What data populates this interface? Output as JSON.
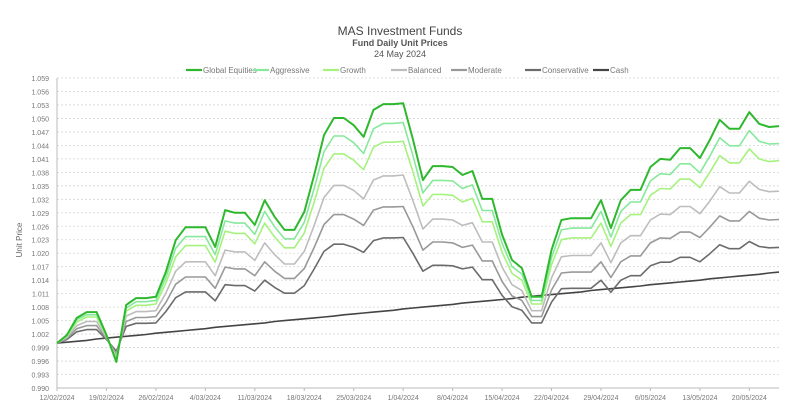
{
  "chart_data": {
    "type": "line",
    "title": "MAS Investment Funds",
    "subtitle": "Fund Daily Unit Prices",
    "date": "24 May 2024",
    "xlabel": "",
    "ylabel": "Unit Price",
    "ylim": [
      0.99,
      1.059
    ],
    "yticks": [
      "0.990",
      "0.993",
      "0.996",
      "0.999",
      "1.002",
      "1.005",
      "1.008",
      "1.011",
      "1.014",
      "1.017",
      "1.020",
      "1.023",
      "1.026",
      "1.029",
      "1.032",
      "1.035",
      "1.038",
      "1.041",
      "1.044",
      "1.047",
      "1.050",
      "1.053",
      "1.056",
      "1.059"
    ],
    "xtick_labels": [
      "12/02/2024",
      "19/02/2024",
      "26/02/2024",
      "4/03/2024",
      "11/03/2024",
      "18/03/2024",
      "25/03/2024",
      "1/04/2024",
      "8/04/2024",
      "15/04/2024",
      "22/04/2024",
      "29/04/2024",
      "6/05/2024",
      "13/05/2024",
      "20/05/2024"
    ],
    "grid": true,
    "legend": "top",
    "x": [
      "12/02/2024",
      "13/02/2024",
      "14/02/2024",
      "15/02/2024",
      "16/02/2024",
      "19/02/2024",
      "20/02/2024",
      "21/02/2024",
      "22/02/2024",
      "23/02/2024",
      "26/02/2024",
      "27/02/2024",
      "28/02/2024",
      "29/02/2024",
      "1/03/2024",
      "4/03/2024",
      "5/03/2024",
      "6/03/2024",
      "7/03/2024",
      "8/03/2024",
      "11/03/2024",
      "12/03/2024",
      "13/03/2024",
      "14/03/2024",
      "15/03/2024",
      "18/03/2024",
      "19/03/2024",
      "20/03/2024",
      "21/03/2024",
      "22/03/2024",
      "25/03/2024",
      "26/03/2024",
      "27/03/2024",
      "28/03/2024",
      "29/03/2024",
      "1/04/2024",
      "2/04/2024",
      "3/04/2024",
      "4/04/2024",
      "5/04/2024",
      "8/04/2024",
      "9/04/2024",
      "10/04/2024",
      "11/04/2024",
      "12/04/2024",
      "15/04/2024",
      "16/04/2024",
      "17/04/2024",
      "18/04/2024",
      "19/04/2024",
      "22/04/2024",
      "23/04/2024",
      "24/04/2024",
      "25/04/2024",
      "26/04/2024",
      "29/04/2024",
      "30/04/2024",
      "1/05/2024",
      "2/05/2024",
      "3/05/2024",
      "6/05/2024",
      "7/05/2024",
      "8/05/2024",
      "9/05/2024",
      "10/05/2024",
      "13/05/2024",
      "14/05/2024",
      "15/05/2024",
      "16/05/2024",
      "17/05/2024",
      "20/05/2024",
      "21/05/2024",
      "22/05/2024",
      "23/05/2024"
    ],
    "series": [
      {
        "name": "Global Equities",
        "color": "#2eb82e",
        "width": 2,
        "values": [
          1.0,
          1.0018,
          1.0056,
          1.0069,
          1.0069,
          1.0018,
          0.9958,
          1.0085,
          1.01,
          1.01,
          1.0103,
          1.0158,
          1.0229,
          1.0258,
          1.0258,
          1.0258,
          1.0214,
          1.0296,
          1.029,
          1.029,
          1.0263,
          1.0318,
          1.0281,
          1.0252,
          1.0252,
          1.0292,
          1.0374,
          1.0463,
          1.0501,
          1.0501,
          1.0485,
          1.0459,
          1.0519,
          1.0532,
          1.0532,
          1.0534,
          1.0452,
          1.0363,
          1.0394,
          1.0394,
          1.0392,
          1.0374,
          1.0383,
          1.0321,
          1.0321,
          1.0241,
          1.0185,
          1.0167,
          1.0103,
          1.0103,
          1.0207,
          1.0274,
          1.0278,
          1.0278,
          1.0278,
          1.0318,
          1.0256,
          1.0318,
          1.0341,
          1.0341,
          1.0392,
          1.041,
          1.0408,
          1.0434,
          1.0434,
          1.0412,
          1.0452,
          1.0497,
          1.0477,
          1.0477,
          1.0514,
          1.0488,
          1.0481,
          1.0483
        ]
      },
      {
        "name": "Aggressive",
        "color": "#86e99c",
        "width": 1.6,
        "values": [
          1.0,
          1.0017,
          1.0052,
          1.0063,
          1.0063,
          1.0017,
          0.9961,
          1.0078,
          1.0092,
          1.0092,
          1.0095,
          1.0145,
          1.0211,
          1.0237,
          1.0237,
          1.0237,
          1.0197,
          1.0272,
          1.0267,
          1.0267,
          1.0242,
          1.0293,
          1.0259,
          1.0232,
          1.0232,
          1.0269,
          1.0344,
          1.0426,
          1.0461,
          1.0461,
          1.0446,
          1.0422,
          1.0477,
          1.0489,
          1.0489,
          1.0491,
          1.0416,
          1.0334,
          1.0362,
          1.0362,
          1.0361,
          1.0344,
          1.0352,
          1.0295,
          1.0295,
          1.0222,
          1.017,
          1.0154,
          1.0095,
          1.0095,
          1.019,
          1.0252,
          1.0256,
          1.0256,
          1.0256,
          1.0293,
          1.0236,
          1.0293,
          1.0314,
          1.0314,
          1.0361,
          1.0377,
          1.0375,
          1.0399,
          1.0399,
          1.0379,
          1.0416,
          1.0457,
          1.0439,
          1.0439,
          1.0473,
          1.0449,
          1.0443,
          1.0444
        ]
      },
      {
        "name": "Growth",
        "color": "#a6f27f",
        "width": 1.6,
        "values": [
          1.0,
          1.0015,
          1.0047,
          1.0058,
          1.0058,
          1.0015,
          0.9965,
          1.0071,
          1.0084,
          1.0084,
          1.0087,
          1.0133,
          1.0192,
          1.0217,
          1.0217,
          1.0217,
          1.018,
          1.0249,
          1.0244,
          1.0244,
          1.0221,
          1.0267,
          1.0236,
          1.0212,
          1.0212,
          1.0245,
          1.0314,
          1.0389,
          1.0421,
          1.0421,
          1.0407,
          1.0386,
          1.0436,
          1.0447,
          1.0447,
          1.0449,
          1.038,
          1.0305,
          1.0331,
          1.0331,
          1.0329,
          1.0314,
          1.0322,
          1.027,
          1.027,
          1.0202,
          1.0155,
          1.014,
          1.0087,
          1.0087,
          1.0174,
          1.023,
          1.0234,
          1.0234,
          1.0234,
          1.0267,
          1.0215,
          1.0267,
          1.0286,
          1.0286,
          1.0329,
          1.0344,
          1.0343,
          1.0365,
          1.0365,
          1.0346,
          1.038,
          1.0417,
          1.0401,
          1.0401,
          1.0432,
          1.041,
          1.0404,
          1.0406
        ]
      },
      {
        "name": "Balanced",
        "color": "#bdbdbd",
        "width": 1.6,
        "values": [
          1.0,
          1.0013,
          1.0039,
          1.0048,
          1.0048,
          1.0013,
          0.9971,
          1.006,
          1.007,
          1.007,
          1.0072,
          1.0111,
          1.016,
          1.0181,
          1.0181,
          1.0181,
          1.015,
          1.0207,
          1.0203,
          1.0203,
          1.0184,
          1.0223,
          1.0197,
          1.0176,
          1.0176,
          1.0204,
          1.0262,
          1.0324,
          1.0351,
          1.0351,
          1.034,
          1.0321,
          1.0363,
          1.0372,
          1.0372,
          1.0374,
          1.0316,
          1.0254,
          1.0276,
          1.0276,
          1.0274,
          1.0262,
          1.0268,
          1.0225,
          1.0225,
          1.0169,
          1.013,
          1.0117,
          1.0072,
          1.0072,
          1.0145,
          1.0192,
          1.0195,
          1.0195,
          1.0195,
          1.0223,
          1.0179,
          1.0223,
          1.0239,
          1.0239,
          1.0274,
          1.0287,
          1.0286,
          1.0304,
          1.0304,
          1.0288,
          1.0316,
          1.0348,
          1.0334,
          1.0334,
          1.036,
          1.0342,
          1.0337,
          1.0338
        ]
      },
      {
        "name": "Moderate",
        "color": "#999999",
        "width": 1.6,
        "values": [
          1.0,
          1.001,
          1.0032,
          1.0039,
          1.0039,
          1.001,
          0.9976,
          1.0048,
          1.0057,
          1.0057,
          1.0059,
          1.009,
          1.0131,
          1.0147,
          1.0147,
          1.0147,
          1.0122,
          1.0169,
          1.0165,
          1.0165,
          1.015,
          1.0181,
          1.016,
          1.0144,
          1.0144,
          1.0166,
          1.0213,
          1.0264,
          1.0286,
          1.0286,
          1.0276,
          1.0262,
          1.0296,
          1.0303,
          1.0303,
          1.0304,
          1.0258,
          1.0207,
          1.0225,
          1.0225,
          1.0223,
          1.0213,
          1.0218,
          1.0183,
          1.0183,
          1.0137,
          1.0105,
          1.0095,
          1.0059,
          1.0059,
          1.0118,
          1.0156,
          1.0158,
          1.0158,
          1.0158,
          1.0181,
          1.0146,
          1.0181,
          1.0194,
          1.0194,
          1.0223,
          1.0234,
          1.0233,
          1.0247,
          1.0247,
          1.0235,
          1.0258,
          1.0283,
          1.0272,
          1.0272,
          1.0293,
          1.0278,
          1.0274,
          1.0275
        ]
      },
      {
        "name": "Conservative",
        "color": "#6b6b6b",
        "width": 1.6,
        "values": [
          1.0,
          1.0008,
          1.0025,
          1.003,
          1.003,
          1.0008,
          0.9982,
          1.0037,
          1.0044,
          1.0044,
          1.0045,
          1.007,
          1.0101,
          1.0114,
          1.0114,
          1.0114,
          1.0094,
          1.013,
          1.0128,
          1.0128,
          1.0116,
          1.014,
          1.0124,
          1.0111,
          1.0111,
          1.0128,
          1.0165,
          1.0204,
          1.022,
          1.022,
          1.0213,
          1.0202,
          1.0228,
          1.0234,
          1.0234,
          1.0235,
          1.0199,
          1.016,
          1.0173,
          1.0173,
          1.0172,
          1.0165,
          1.0169,
          1.0141,
          1.0141,
          1.0106,
          1.0081,
          1.0073,
          1.0045,
          1.0045,
          1.0091,
          1.0121,
          1.0122,
          1.0122,
          1.0122,
          1.014,
          1.0113,
          1.014,
          1.015,
          1.015,
          1.0172,
          1.018,
          1.018,
          1.0191,
          1.0191,
          1.0181,
          1.0199,
          1.0219,
          1.021,
          1.021,
          1.0226,
          1.0215,
          1.0212,
          1.0213
        ]
      },
      {
        "name": "Cash",
        "color": "#454545",
        "width": 1.6,
        "values": [
          1.0,
          1.0002,
          1.0004,
          1.0006,
          1.0009,
          1.0011,
          1.0013,
          1.0015,
          1.0017,
          1.0019,
          1.0022,
          1.0024,
          1.0026,
          1.0028,
          1.003,
          1.0032,
          1.0035,
          1.0037,
          1.0039,
          1.0041,
          1.0043,
          1.0045,
          1.0048,
          1.005,
          1.0052,
          1.0054,
          1.0056,
          1.0058,
          1.006,
          1.0063,
          1.0065,
          1.0067,
          1.0069,
          1.0071,
          1.0073,
          1.0076,
          1.0078,
          1.008,
          1.0082,
          1.0084,
          1.0086,
          1.0089,
          1.0091,
          1.0093,
          1.0095,
          1.0097,
          1.0099,
          1.0102,
          1.0104,
          1.0106,
          1.0108,
          1.011,
          1.0112,
          1.0114,
          1.0117,
          1.0119,
          1.0121,
          1.0123,
          1.0125,
          1.0127,
          1.013,
          1.0132,
          1.0134,
          1.0136,
          1.0138,
          1.014,
          1.0143,
          1.0145,
          1.0147,
          1.0149,
          1.0151,
          1.0153,
          1.0156,
          1.0158
        ]
      }
    ]
  }
}
